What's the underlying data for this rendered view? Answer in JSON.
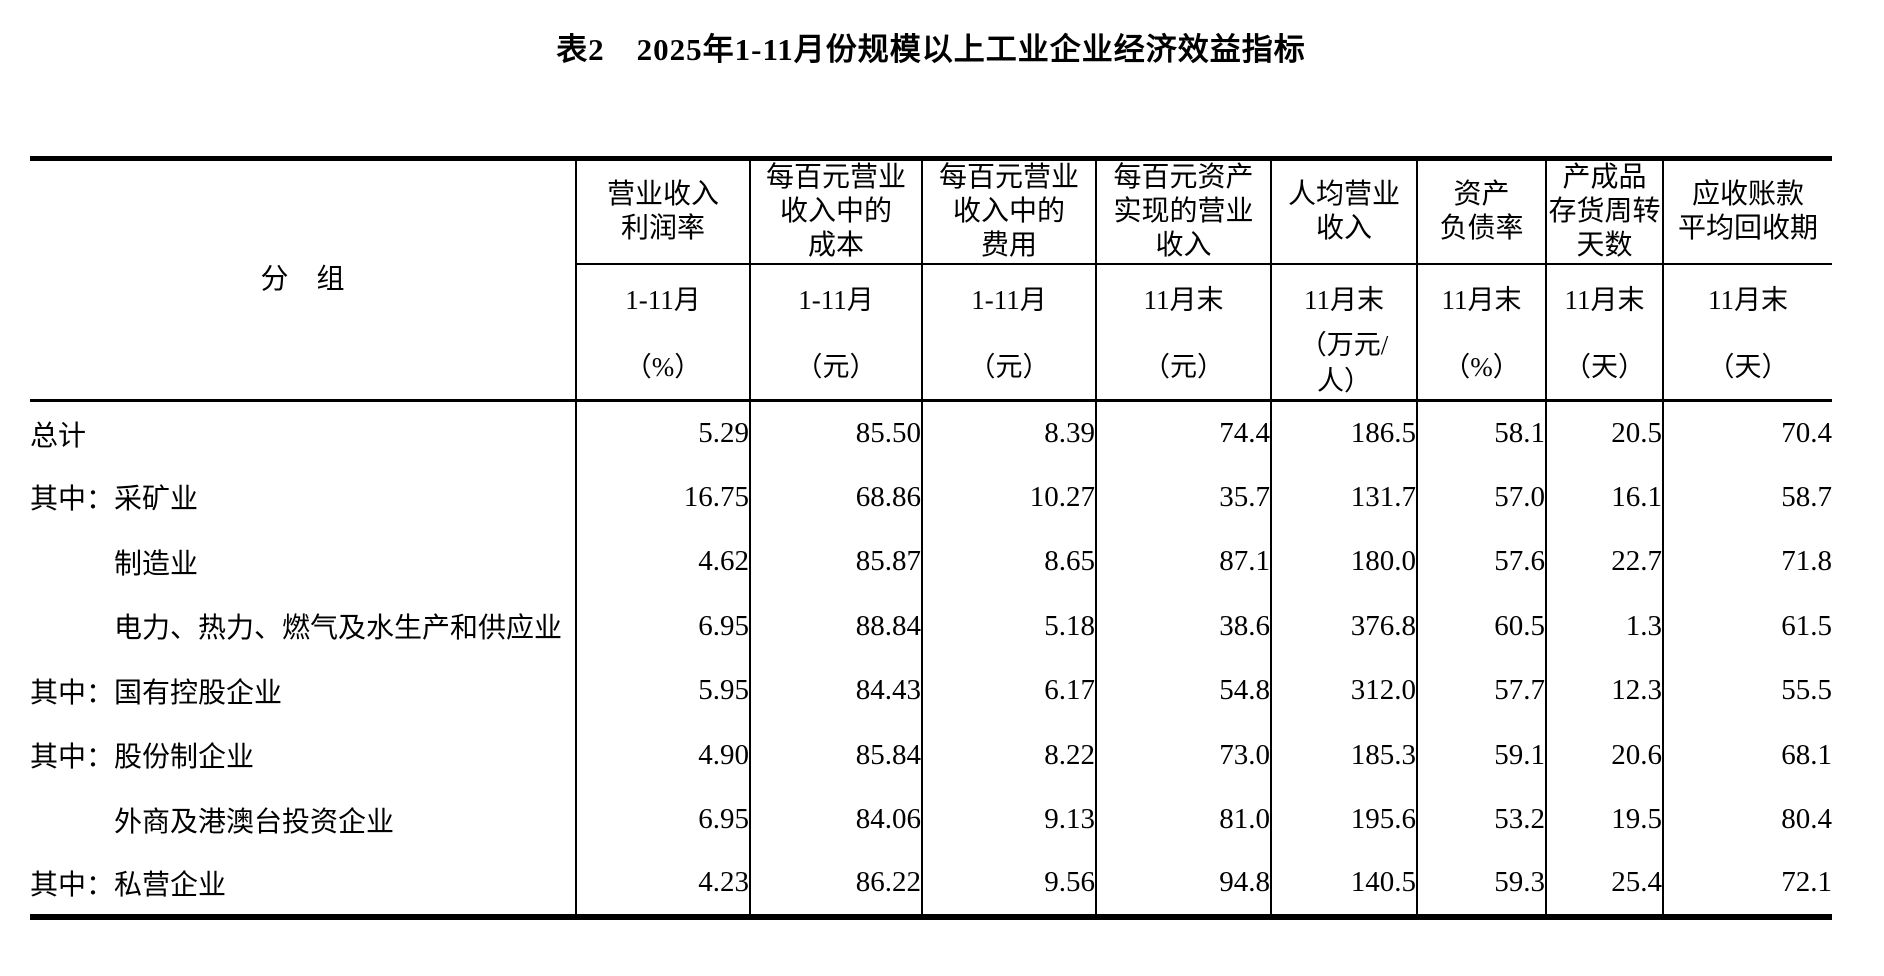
{
  "title": "表2　2025年1-11月份规模以上工业企业经济效益指标",
  "table": {
    "group_header": "分　组",
    "columns": [
      {
        "name": "营业收入\n利润率",
        "period": "1-11月",
        "unit": "（%）"
      },
      {
        "name": "每百元营业\n收入中的\n成本",
        "period": "1-11月",
        "unit": "（元）"
      },
      {
        "name": "每百元营业\n收入中的\n费用",
        "period": "1-11月",
        "unit": "（元）"
      },
      {
        "name": "每百元资产\n实现的营业\n收入",
        "period": "11月末",
        "unit": "（元）"
      },
      {
        "name": "人均营业\n收入",
        "period": "11月末",
        "unit": "（万元/\n人）"
      },
      {
        "name": "资产\n负债率",
        "period": "11月末",
        "unit": "（%）"
      },
      {
        "name": "产成品\n存货周转\n天数",
        "period": "11月末",
        "unit": "（天）"
      },
      {
        "name": "应收账款\n平均回收期",
        "period": "11月末",
        "unit": "（天）"
      }
    ],
    "rows": [
      {
        "label": "总计",
        "values": [
          "5.29",
          "85.50",
          "8.39",
          "74.4",
          "186.5",
          "58.1",
          "20.5",
          "70.4"
        ]
      },
      {
        "label": "其中：采矿业",
        "values": [
          "16.75",
          "68.86",
          "10.27",
          "35.7",
          "131.7",
          "57.0",
          "16.1",
          "58.7"
        ]
      },
      {
        "label": "　　　制造业",
        "values": [
          "4.62",
          "85.87",
          "8.65",
          "87.1",
          "180.0",
          "57.6",
          "22.7",
          "71.8"
        ]
      },
      {
        "label": "　　　电力、热力、燃气及水生产和供应业",
        "values": [
          "6.95",
          "88.84",
          "5.18",
          "38.6",
          "376.8",
          "60.5",
          "1.3",
          "61.5"
        ]
      },
      {
        "label": "其中：国有控股企业",
        "values": [
          "5.95",
          "84.43",
          "6.17",
          "54.8",
          "312.0",
          "57.7",
          "12.3",
          "55.5"
        ]
      },
      {
        "label": "其中：股份制企业",
        "values": [
          "4.90",
          "85.84",
          "8.22",
          "73.0",
          "185.3",
          "59.1",
          "20.6",
          "68.1"
        ]
      },
      {
        "label": "　　　外商及港澳台投资企业",
        "values": [
          "6.95",
          "84.06",
          "9.13",
          "81.0",
          "195.6",
          "53.2",
          "19.5",
          "80.4"
        ]
      },
      {
        "label": "其中：私营企业",
        "values": [
          "4.23",
          "86.22",
          "9.56",
          "94.8",
          "140.5",
          "59.3",
          "25.4",
          "72.1"
        ]
      }
    ]
  }
}
